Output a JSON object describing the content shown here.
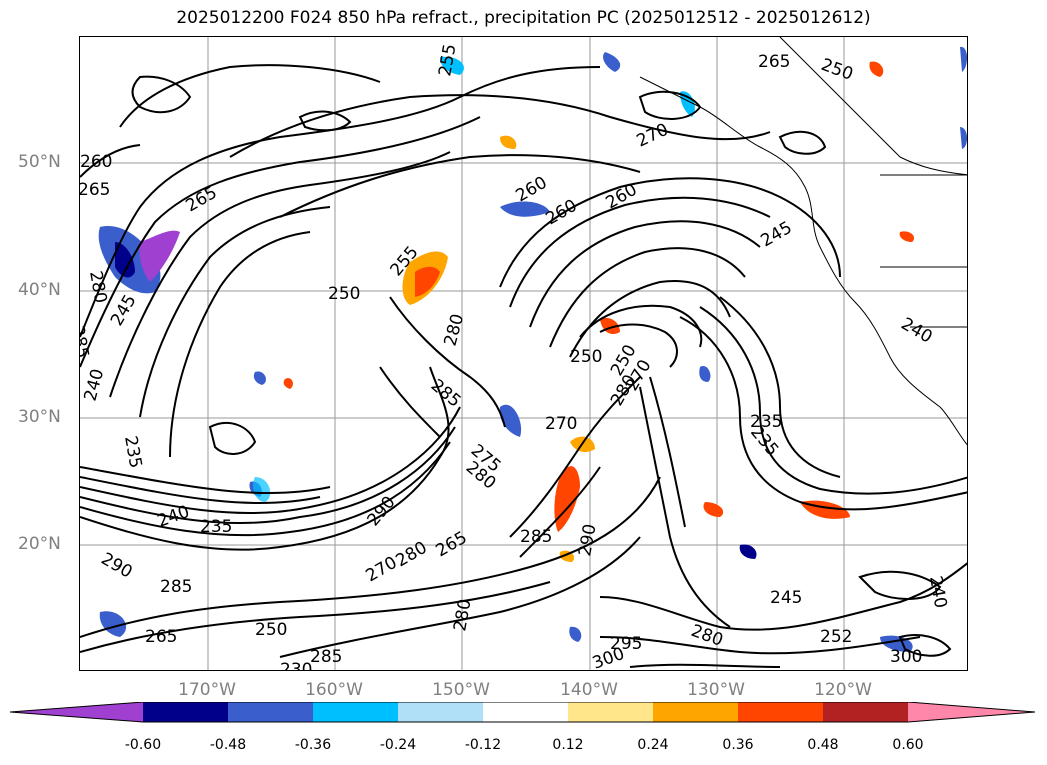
{
  "title": "2025012200 F024 850 hPa refract., precipitation PC (2025012512 - 2025012612)",
  "lat_labels": [
    "50°N",
    "40°N",
    "30°N",
    "20°N"
  ],
  "lon_labels": [
    "170°W",
    "160°W",
    "150°W",
    "140°W",
    "130°W",
    "120°W"
  ],
  "contour_labels": [
    "265",
    "255",
    "250",
    "260",
    "265",
    "270",
    "260",
    "265",
    "260",
    "260",
    "255",
    "250",
    "280",
    "285",
    "245",
    "280",
    "245",
    "240",
    "235",
    "240",
    "235",
    "285",
    "270",
    "275",
    "280",
    "285",
    "250",
    "280",
    "270",
    "235",
    "290",
    "290",
    "280",
    "270",
    "265",
    "285",
    "290",
    "265",
    "250",
    "295",
    "300",
    "280",
    "245",
    "280",
    "240",
    "252",
    "285",
    "300",
    "230",
    "240",
    "235",
    "250"
  ],
  "colorbar": {
    "ticks": [
      "-0.60",
      "-0.48",
      "-0.36",
      "-0.24",
      "-0.12",
      "0.12",
      "0.24",
      "0.36",
      "0.48",
      "0.60"
    ],
    "colors": [
      "#a040d0",
      "#00008b",
      "#3a5fcd",
      "#00bfff",
      "#b0e0f8",
      "#ffffff",
      "#ffe68a",
      "#ffa500",
      "#ff4500",
      "#b22222",
      "#ff88aa",
      "#ff88aa"
    ]
  }
}
